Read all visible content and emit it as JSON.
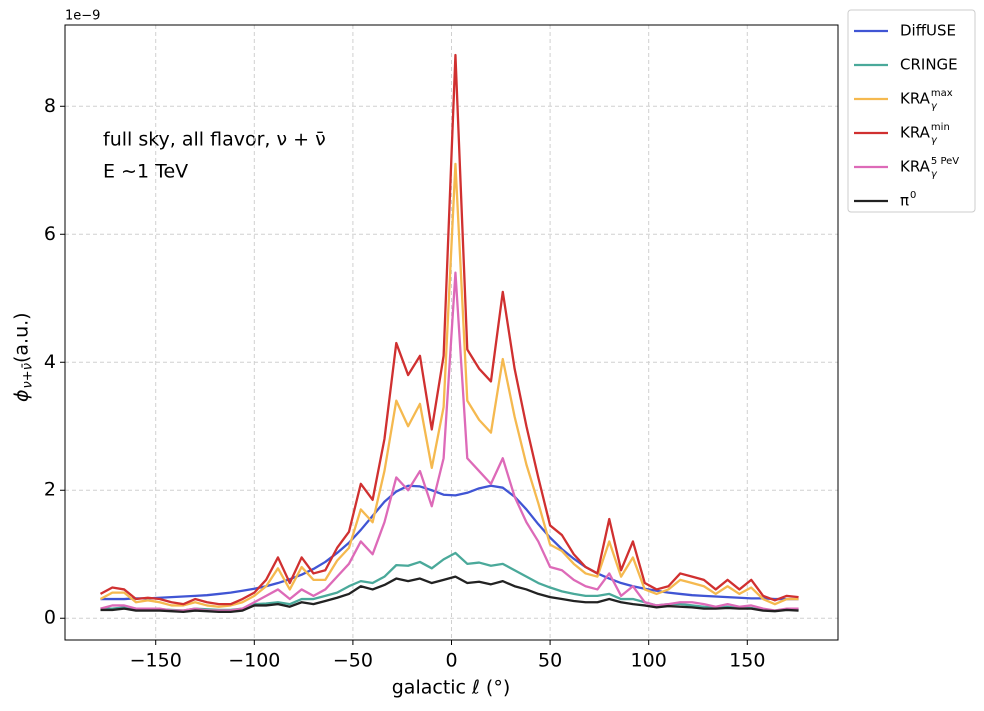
{
  "chart_data": {
    "type": "line",
    "offset_text": "1e−9",
    "xlabel": "galactic ℓ (°)",
    "ylabel": "ϕ",
    "ylabel_sub": "ν+ν̄",
    "ylabel_rest": " (a.u.)",
    "annotations": [
      "full sky, all flavor, ν + ν̄",
      "E ∼1 TeV"
    ],
    "xlim": [
      -196,
      196
    ],
    "ylim": [
      -0.34,
      9.27
    ],
    "xticks": [
      {
        "value": -150,
        "label": "−150"
      },
      {
        "value": -100,
        "label": "−100"
      },
      {
        "value": -50,
        "label": "−50"
      },
      0,
      50,
      100,
      150
    ],
    "yticks": [
      0,
      2,
      4,
      6,
      8
    ],
    "grid": true,
    "legend": "outside upper right",
    "x": [
      -178,
      -172,
      -166,
      -160,
      -154,
      -148,
      -142,
      -136,
      -130,
      -124,
      -118,
      -112,
      -106,
      -100,
      -94,
      -88,
      -82,
      -76,
      -70,
      -64,
      -58,
      -52,
      -46,
      -40,
      -34,
      -28,
      -22,
      -16,
      -10,
      -4,
      2,
      8,
      14,
      20,
      26,
      32,
      38,
      44,
      50,
      56,
      62,
      68,
      74,
      80,
      86,
      92,
      98,
      104,
      110,
      116,
      122,
      128,
      134,
      140,
      146,
      152,
      158,
      164,
      170,
      176
    ],
    "series": [
      {
        "name": "DiffUSE",
        "color": "#4055d4",
        "values": [
          0.3,
          0.3,
          0.3,
          0.31,
          0.31,
          0.32,
          0.33,
          0.34,
          0.35,
          0.36,
          0.38,
          0.4,
          0.43,
          0.46,
          0.5,
          0.55,
          0.61,
          0.68,
          0.77,
          0.88,
          1.02,
          1.18,
          1.38,
          1.6,
          1.82,
          1.98,
          2.07,
          2.06,
          2.0,
          1.93,
          1.92,
          1.96,
          2.03,
          2.07,
          2.04,
          1.9,
          1.7,
          1.47,
          1.26,
          1.08,
          0.93,
          0.8,
          0.7,
          0.62,
          0.55,
          0.5,
          0.46,
          0.43,
          0.4,
          0.38,
          0.36,
          0.35,
          0.34,
          0.33,
          0.32,
          0.31,
          0.31,
          0.3,
          0.3,
          0.3
        ]
      },
      {
        "name": "CRINGE",
        "color": "#4aa99a",
        "values": [
          0.15,
          0.15,
          0.17,
          0.15,
          0.13,
          0.14,
          0.13,
          0.12,
          0.15,
          0.14,
          0.13,
          0.13,
          0.15,
          0.22,
          0.23,
          0.25,
          0.22,
          0.3,
          0.3,
          0.35,
          0.4,
          0.5,
          0.58,
          0.55,
          0.65,
          0.83,
          0.82,
          0.88,
          0.78,
          0.92,
          1.02,
          0.85,
          0.87,
          0.82,
          0.85,
          0.75,
          0.65,
          0.55,
          0.48,
          0.42,
          0.38,
          0.35,
          0.35,
          0.38,
          0.3,
          0.3,
          0.25,
          0.2,
          0.22,
          0.22,
          0.2,
          0.18,
          0.17,
          0.18,
          0.16,
          0.16,
          0.13,
          0.12,
          0.14,
          0.13
        ]
      },
      {
        "name": "KRA",
        "name_sub": "γ",
        "name_sup": "max",
        "color": "#f5b94f",
        "values": [
          0.3,
          0.4,
          0.4,
          0.25,
          0.28,
          0.25,
          0.2,
          0.2,
          0.25,
          0.2,
          0.18,
          0.2,
          0.25,
          0.35,
          0.5,
          0.78,
          0.45,
          0.8,
          0.6,
          0.6,
          0.9,
          1.1,
          1.7,
          1.5,
          2.3,
          3.4,
          3.0,
          3.35,
          2.35,
          3.3,
          7.1,
          3.4,
          3.1,
          2.9,
          4.05,
          3.15,
          2.4,
          1.8,
          1.15,
          1.05,
          0.85,
          0.7,
          0.65,
          1.2,
          0.65,
          0.95,
          0.45,
          0.38,
          0.45,
          0.6,
          0.55,
          0.5,
          0.38,
          0.5,
          0.38,
          0.48,
          0.3,
          0.22,
          0.3,
          0.3
        ]
      },
      {
        "name": "KRA",
        "name_sub": "γ",
        "name_sup": "min",
        "color": "#d03030",
        "values": [
          0.38,
          0.48,
          0.45,
          0.3,
          0.32,
          0.3,
          0.25,
          0.22,
          0.3,
          0.25,
          0.22,
          0.22,
          0.3,
          0.4,
          0.6,
          0.95,
          0.55,
          0.95,
          0.7,
          0.75,
          1.1,
          1.35,
          2.1,
          1.85,
          2.8,
          4.3,
          3.8,
          4.1,
          2.95,
          4.1,
          8.8,
          4.2,
          3.9,
          3.7,
          5.1,
          3.9,
          3.0,
          2.2,
          1.45,
          1.3,
          1.0,
          0.8,
          0.7,
          1.55,
          0.75,
          1.2,
          0.55,
          0.45,
          0.5,
          0.7,
          0.65,
          0.6,
          0.45,
          0.6,
          0.45,
          0.6,
          0.35,
          0.28,
          0.35,
          0.33
        ]
      },
      {
        "name": "KRA",
        "name_sub": "γ",
        "name_sup": "5 PeV",
        "color": "#dd6ab8",
        "values": [
          0.15,
          0.2,
          0.2,
          0.15,
          0.15,
          0.15,
          0.12,
          0.12,
          0.15,
          0.12,
          0.12,
          0.12,
          0.15,
          0.25,
          0.35,
          0.45,
          0.3,
          0.45,
          0.35,
          0.45,
          0.65,
          0.85,
          1.2,
          1.0,
          1.5,
          2.2,
          2.0,
          2.3,
          1.75,
          2.5,
          5.4,
          2.5,
          2.3,
          2.1,
          2.5,
          1.9,
          1.5,
          1.2,
          0.8,
          0.75,
          0.6,
          0.5,
          0.45,
          0.7,
          0.35,
          0.5,
          0.25,
          0.2,
          0.22,
          0.25,
          0.25,
          0.22,
          0.18,
          0.22,
          0.18,
          0.2,
          0.15,
          0.12,
          0.15,
          0.15
        ]
      },
      {
        "name": "π",
        "name_sup": "0",
        "color": "#222222",
        "values": [
          0.13,
          0.13,
          0.15,
          0.12,
          0.12,
          0.12,
          0.11,
          0.1,
          0.12,
          0.11,
          0.1,
          0.1,
          0.12,
          0.2,
          0.2,
          0.22,
          0.18,
          0.25,
          0.22,
          0.27,
          0.32,
          0.38,
          0.5,
          0.45,
          0.52,
          0.62,
          0.58,
          0.62,
          0.55,
          0.6,
          0.65,
          0.55,
          0.57,
          0.53,
          0.58,
          0.5,
          0.45,
          0.38,
          0.33,
          0.3,
          0.27,
          0.25,
          0.25,
          0.3,
          0.25,
          0.22,
          0.2,
          0.17,
          0.19,
          0.18,
          0.17,
          0.15,
          0.15,
          0.16,
          0.15,
          0.15,
          0.12,
          0.11,
          0.13,
          0.12
        ]
      }
    ]
  }
}
